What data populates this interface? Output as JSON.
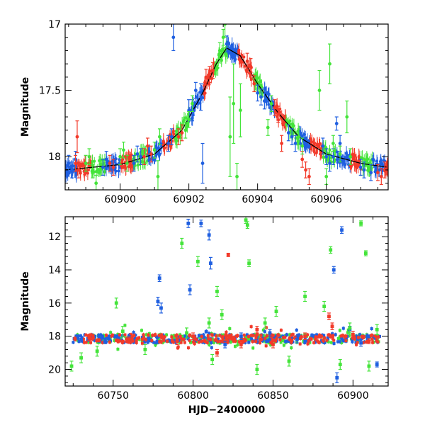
{
  "colors": {
    "blue": "#1f5fe0",
    "red": "#f23a2a",
    "green": "#44e43a",
    "model": "#000000"
  },
  "chart_data": [
    {
      "type": "scatter",
      "panel": "top",
      "xlabel": "",
      "ylabel": "Magnitude",
      "xlim": [
        60898.4,
        60907.8
      ],
      "ylim": [
        18.25,
        17.0
      ],
      "y_inverted": true,
      "xticks": [
        60900,
        60902,
        60904,
        60906
      ],
      "xtick_labels": [
        "60900",
        "60902",
        "60904",
        "60906"
      ],
      "yticks": [
        17,
        17.5,
        18
      ],
      "ytick_labels": [
        "17",
        "17.5",
        "18"
      ],
      "model_curve": {
        "description_free": true,
        "peak_x": 60903.1,
        "peak_mag": 17.18,
        "baseline_mag": 18.1,
        "points": [
          [
            60898.4,
            18.1
          ],
          [
            60900,
            18.06
          ],
          [
            60901,
            17.98
          ],
          [
            60901.8,
            17.8
          ],
          [
            60902.4,
            17.52
          ],
          [
            60902.8,
            17.3
          ],
          [
            60903.1,
            17.18
          ],
          [
            60903.5,
            17.24
          ],
          [
            60904,
            17.45
          ],
          [
            60904.6,
            17.67
          ],
          [
            60905.2,
            17.85
          ],
          [
            60906,
            17.98
          ],
          [
            60907,
            18.05
          ],
          [
            60907.8,
            18.08
          ]
        ]
      },
      "series": [
        {
          "color": "blue",
          "points": [
            [
              60898.5,
              18.05,
              0.06
            ],
            [
              60898.6,
              18.1,
              0.06
            ],
            [
              60898.7,
              18.02,
              0.06
            ],
            [
              60899.5,
              18.08,
              0.06
            ],
            [
              60899.6,
              18.02,
              0.06
            ],
            [
              60900.4,
              18.05,
              0.06
            ],
            [
              60900.5,
              17.98,
              0.06
            ],
            [
              60900.6,
              18.0,
              0.06
            ],
            [
              60901.4,
              17.9,
              0.06
            ],
            [
              60901.5,
              17.85,
              0.06
            ],
            [
              60901.55,
              17.1,
              0.1
            ],
            [
              60902.0,
              17.65,
              0.08
            ],
            [
              60902.1,
              17.65,
              0.08
            ],
            [
              60902.2,
              17.5,
              0.06
            ],
            [
              60902.35,
              17.55,
              0.1
            ],
            [
              60902.4,
              18.05,
              0.15
            ],
            [
              60903.1,
              17.15,
              0.06
            ],
            [
              60904.0,
              17.52,
              0.06
            ],
            [
              60904.1,
              17.55,
              0.06
            ],
            [
              60904.2,
              17.58,
              0.06
            ],
            [
              60904.9,
              17.82,
              0.06
            ],
            [
              60905.0,
              17.85,
              0.06
            ],
            [
              60905.1,
              17.9,
              0.06
            ],
            [
              60905.9,
              17.92,
              0.06
            ],
            [
              60906.0,
              18.0,
              0.06
            ],
            [
              60906.1,
              18.05,
              0.06
            ],
            [
              60906.2,
              18.0,
              0.06
            ],
            [
              60906.3,
              17.75,
              0.05
            ],
            [
              60906.4,
              17.9,
              0.06
            ],
            [
              60907.0,
              18.08,
              0.06
            ],
            [
              60907.1,
              18.1,
              0.06
            ],
            [
              60907.3,
              18.12,
              0.06
            ]
          ]
        },
        {
          "color": "red",
          "points": [
            [
              60898.7,
              18.05,
              0.06
            ],
            [
              60898.75,
              17.85,
              0.12
            ],
            [
              60898.8,
              18.1,
              0.06
            ],
            [
              60899.7,
              18.05,
              0.06
            ],
            [
              60899.8,
              18.08,
              0.06
            ],
            [
              60900.7,
              18.0,
              0.06
            ],
            [
              60900.8,
              17.92,
              0.06
            ],
            [
              60900.9,
              17.98,
              0.06
            ],
            [
              60901.7,
              17.85,
              0.06
            ],
            [
              60901.8,
              17.82,
              0.06
            ],
            [
              60902.5,
              17.4,
              0.06
            ],
            [
              60902.6,
              17.38,
              0.06
            ],
            [
              60902.7,
              17.35,
              0.06
            ],
            [
              60903.7,
              17.28,
              0.06
            ],
            [
              60903.8,
              17.32,
              0.06
            ],
            [
              60903.9,
              17.45,
              0.06
            ],
            [
              60904.5,
              17.63,
              0.06
            ],
            [
              60904.6,
              17.68,
              0.06
            ],
            [
              60904.7,
              17.9,
              0.06
            ],
            [
              60905.3,
              18.02,
              0.06
            ],
            [
              60905.4,
              18.1,
              0.06
            ],
            [
              60905.5,
              18.15,
              0.06
            ],
            [
              60907.5,
              18.12,
              0.06
            ],
            [
              60907.6,
              18.15,
              0.06
            ],
            [
              60907.7,
              18.1,
              0.06
            ]
          ]
        },
        {
          "color": "green",
          "points": [
            [
              60899.0,
              18.05,
              0.06
            ],
            [
              60899.1,
              18.0,
              0.06
            ],
            [
              60899.2,
              18.1,
              0.06
            ],
            [
              60899.3,
              18.2,
              0.06
            ],
            [
              60900.0,
              18.0,
              0.06
            ],
            [
              60900.1,
              17.95,
              0.06
            ],
            [
              60900.2,
              18.05,
              0.06
            ],
            [
              60901.0,
              17.95,
              0.06
            ],
            [
              60901.1,
              18.15,
              0.12
            ],
            [
              60901.15,
              17.85,
              0.06
            ],
            [
              60901.9,
              17.8,
              0.06
            ],
            [
              60902.0,
              17.72,
              0.06
            ],
            [
              60902.1,
              17.6,
              0.06
            ],
            [
              60902.9,
              17.2,
              0.06
            ],
            [
              60903.0,
              17.1,
              0.06
            ],
            [
              60903.05,
              17.0,
              0.1
            ],
            [
              60903.2,
              17.85,
              0.3
            ],
            [
              60903.3,
              17.6,
              0.3
            ],
            [
              60903.4,
              18.15,
              0.1
            ],
            [
              60903.5,
              17.65,
              0.2
            ],
            [
              60904.3,
              17.78,
              0.06
            ],
            [
              60904.4,
              17.6,
              0.06
            ],
            [
              60905.2,
              17.85,
              0.06
            ],
            [
              60905.3,
              17.92,
              0.06
            ],
            [
              60905.8,
              17.5,
              0.15
            ],
            [
              60906.0,
              18.15,
              0.06
            ],
            [
              60906.1,
              17.3,
              0.15
            ],
            [
              60906.2,
              17.9,
              0.06
            ],
            [
              60906.4,
              17.98,
              0.06
            ],
            [
              60906.6,
              17.7,
              0.12
            ],
            [
              60906.7,
              18.0,
              0.06
            ]
          ]
        }
      ]
    },
    {
      "type": "scatter",
      "panel": "bottom",
      "xlabel": "HJD−2400000",
      "ylabel": "Magnitude",
      "xlim": [
        60720,
        60922
      ],
      "ylim": [
        21.0,
        10.8
      ],
      "y_inverted": true,
      "xticks": [
        60750,
        60800,
        60850,
        60900
      ],
      "xtick_labels": [
        "60750",
        "60800",
        "60850",
        "60900"
      ],
      "yticks": [
        12,
        14,
        16,
        18,
        20
      ],
      "ytick_labels": [
        "12",
        "14",
        "16",
        "18",
        "20"
      ],
      "band_magnitude": 18.15,
      "series": [
        {
          "color": "blue",
          "points": [
            [
              60730,
              18.2,
              0.15
            ],
            [
              60745,
              18.3,
              0.15
            ],
            [
              60760,
              18.1,
              0.15
            ],
            [
              60778,
              15.9,
              0.25
            ],
            [
              60779,
              14.5,
              0.2
            ],
            [
              60780,
              16.3,
              0.3
            ],
            [
              60797,
              11.2,
              0.25
            ],
            [
              60798,
              15.2,
              0.3
            ],
            [
              60805,
              11.2,
              0.2
            ],
            [
              60810,
              11.9,
              0.3
            ],
            [
              60811,
              13.6,
              0.35
            ],
            [
              60820,
              18.5,
              0.2
            ],
            [
              60830,
              18.0,
              0.2
            ],
            [
              60848,
              17.8,
              0.2
            ],
            [
              60865,
              18.2,
              0.2
            ],
            [
              60888,
              14.0,
              0.2
            ],
            [
              60890,
              20.5,
              0.3
            ],
            [
              60893,
              11.6,
              0.2
            ],
            [
              60898,
              17.6,
              0.2
            ],
            [
              60905,
              18.4,
              0.2
            ],
            [
              60915,
              19.7,
              0.15
            ]
          ]
        },
        {
          "color": "red",
          "points": [
            [
              60735,
              18.1,
              0.15
            ],
            [
              60760,
              18.2,
              0.15
            ],
            [
              60790,
              18.3,
              0.2
            ],
            [
              60800,
              18.0,
              0.2
            ],
            [
              60815,
              19.0,
              0.2
            ],
            [
              60822,
              13.1,
              0.1
            ],
            [
              60830,
              18.5,
              0.2
            ],
            [
              60840,
              17.6,
              0.2
            ],
            [
              60850,
              18.5,
              0.2
            ],
            [
              60870,
              18.0,
              0.2
            ],
            [
              60885,
              16.8,
              0.2
            ],
            [
              60887,
              17.4,
              0.2
            ],
            [
              60900,
              17.9,
              0.2
            ],
            [
              60910,
              18.3,
              0.15
            ]
          ]
        },
        {
          "color": "green",
          "points": [
            [
              60724,
              19.8,
              0.3
            ],
            [
              60730,
              19.3,
              0.3
            ],
            [
              60740,
              18.9,
              0.3
            ],
            [
              60752,
              16.0,
              0.3
            ],
            [
              60756,
              17.7,
              0.3
            ],
            [
              60770,
              18.8,
              0.3
            ],
            [
              60793,
              12.4,
              0.3
            ],
            [
              60796,
              17.8,
              0.3
            ],
            [
              60803,
              13.5,
              0.3
            ],
            [
              60810,
              17.2,
              0.3
            ],
            [
              60812,
              19.4,
              0.3
            ],
            [
              60815,
              15.3,
              0.3
            ],
            [
              60818,
              16.7,
              0.3
            ],
            [
              60833,
              11.0,
              0.2
            ],
            [
              60834,
              11.3,
              0.2
            ],
            [
              60835,
              13.6,
              0.2
            ],
            [
              60840,
              20.0,
              0.3
            ],
            [
              60845,
              17.2,
              0.3
            ],
            [
              60852,
              16.5,
              0.3
            ],
            [
              60860,
              19.5,
              0.3
            ],
            [
              60870,
              15.6,
              0.3
            ],
            [
              60882,
              16.2,
              0.3
            ],
            [
              60886,
              12.8,
              0.2
            ],
            [
              60892,
              19.7,
              0.3
            ],
            [
              60898,
              17.5,
              0.3
            ],
            [
              60905,
              11.2,
              0.15
            ],
            [
              60908,
              13.0,
              0.15
            ],
            [
              60910,
              19.8,
              0.3
            ],
            [
              60915,
              17.6,
              0.3
            ]
          ]
        }
      ]
    }
  ]
}
